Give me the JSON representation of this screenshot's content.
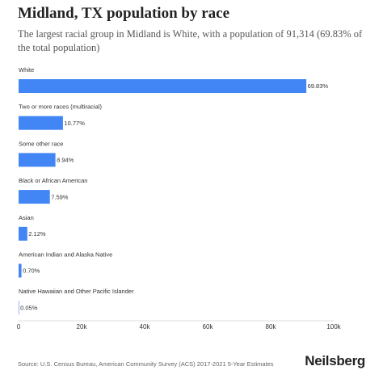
{
  "header": {
    "title": "Midland, TX population by race",
    "subtitle": "The largest racial group in Midland is White, with a population of 91,314 (69.83% of the total population)"
  },
  "footer": {
    "source": "Source: U.S. Census Bureau, American Community Survey (ACS) 2017-2021 5-Year Estimates",
    "brand": "Neilsberg"
  },
  "colors": {
    "bar": "#4285f4"
  },
  "chart_data": {
    "type": "bar",
    "orientation": "horizontal",
    "categories": [
      "White",
      "Two or more races (multiracial)",
      "Some other race",
      "Black or African American",
      "Asian",
      "American Indian and Alaska Native",
      "Native Hawaiian and Other Pacific Islander"
    ],
    "values": [
      91314,
      14083,
      11690,
      9925,
      2772,
      915,
      65
    ],
    "data_labels": [
      "69.83%",
      "10.77%",
      "8.94%",
      "7.59%",
      "2.12%",
      "0.70%",
      "0.05%"
    ],
    "xlim": [
      0,
      100000
    ],
    "x_ticks": [
      0,
      20000,
      40000,
      60000,
      80000,
      100000
    ],
    "x_tick_labels": [
      "0",
      "20k",
      "40k",
      "60k",
      "80k",
      "100k"
    ],
    "grid": false,
    "legend": "none"
  }
}
